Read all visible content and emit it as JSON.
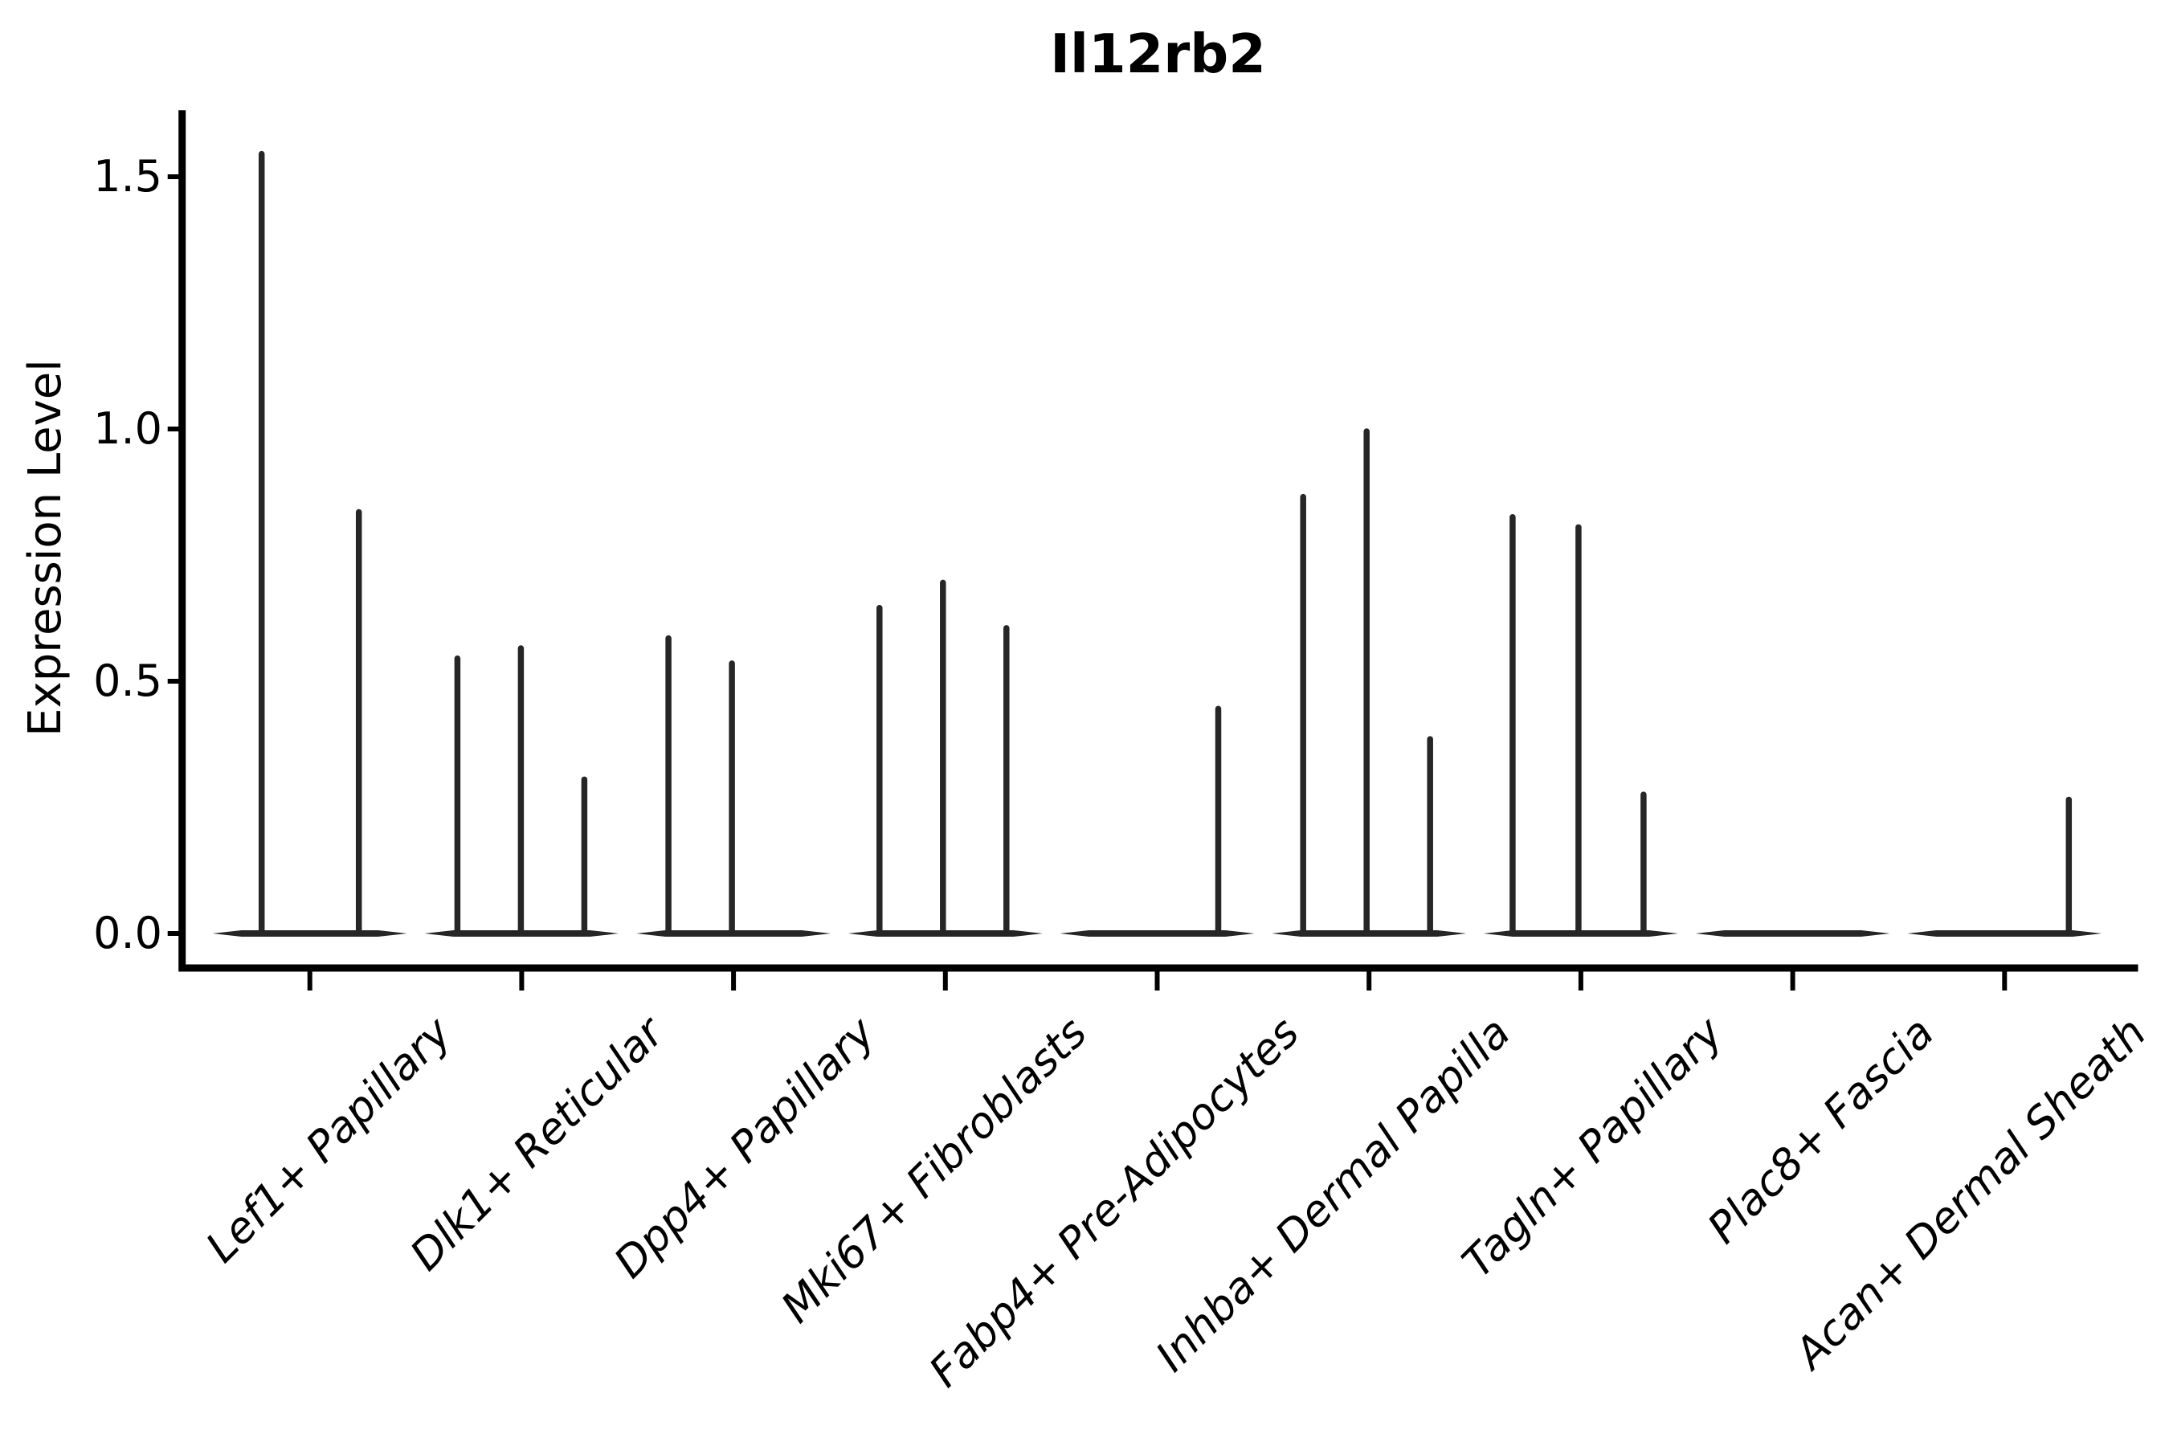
{
  "title": "Il12rb2",
  "y_axis": {
    "label": "Expression Level",
    "tick_labels": [
      "0.0",
      "0.5",
      "1.0",
      "1.5"
    ],
    "tick_values": [
      0.0,
      0.5,
      1.0,
      1.5
    ]
  },
  "chart_data": {
    "type": "violin",
    "title": "Il12rb2",
    "xlabel": "",
    "ylabel": "Expression Level",
    "ylim": [
      -0.07,
      1.62
    ],
    "grid": false,
    "legend": "none",
    "style_note": "Collapsed violins: flat dark line at y=0 for each cluster plus thin vertical spikes at the expression values of the few expressing cells",
    "violin_color": "#262626",
    "axis_color": "#000000",
    "categories": [
      "Lef1+ Papillary",
      "Dlk1+ Reticular",
      "Dpp4+ Papillary",
      "Mki67+ Fibroblasts",
      "Fabp4+ Pre-Adipocytes",
      "Inhba+ Dermal Papilla",
      "Tagln+ Papillary",
      "Plac8+ Fascia",
      "Acan+ Dermal Sheath"
    ],
    "series": [
      {
        "category": "Lef1+ Papillary",
        "spikes": [
          {
            "offset": -60,
            "value": 1.55
          },
          {
            "offset": 61,
            "value": 0.84
          }
        ]
      },
      {
        "category": "Dlk1+ Reticular",
        "spikes": [
          {
            "offset": -80,
            "value": 0.55
          },
          {
            "offset": -1,
            "value": 0.57
          },
          {
            "offset": 78,
            "value": 0.31
          }
        ]
      },
      {
        "category": "Dpp4+ Papillary",
        "spikes": [
          {
            "offset": -81,
            "value": 0.59
          },
          {
            "offset": -2,
            "value": 0.54
          }
        ]
      },
      {
        "category": "Mki67+ Fibroblasts",
        "spikes": [
          {
            "offset": -82,
            "value": 0.65
          },
          {
            "offset": -3,
            "value": 0.7
          },
          {
            "offset": 76,
            "value": 0.61
          }
        ]
      },
      {
        "category": "Fabp4+ Pre-Adipocytes",
        "spikes": [
          {
            "offset": 76,
            "value": 0.45
          }
        ]
      },
      {
        "category": "Inhba+ Dermal Papilla",
        "spikes": [
          {
            "offset": -82,
            "value": 0.87
          },
          {
            "offset": -3,
            "value": 1.0
          },
          {
            "offset": 76,
            "value": 0.39
          }
        ]
      },
      {
        "category": "Tagln+ Papillary",
        "spikes": [
          {
            "offset": -85,
            "value": 0.83
          },
          {
            "offset": -3,
            "value": 0.81
          },
          {
            "offset": 78,
            "value": 0.28
          }
        ]
      },
      {
        "category": "Plac8+ Fascia",
        "spikes": []
      },
      {
        "category": "Acan+ Dermal Sheath",
        "spikes": [
          {
            "offset": 80,
            "value": 0.27
          }
        ]
      }
    ]
  }
}
